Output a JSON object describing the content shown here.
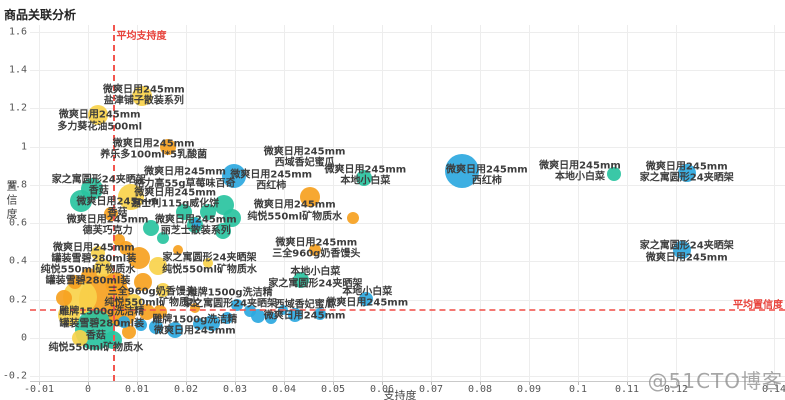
{
  "title": "商品关联分析",
  "watermark": "@51CTO博客",
  "chart_data": {
    "type": "scatter",
    "title": "商品关联分析",
    "xlabel": "支持度",
    "ylabel": "置信度",
    "xlim": [
      -0.011,
      0.142
    ],
    "ylim": [
      -0.225,
      1.63
    ],
    "grid": true,
    "x_ticks": [
      {
        "v": -0.01,
        "t": "-0.01"
      },
      {
        "v": 0,
        "t": "0"
      },
      {
        "v": 0.01,
        "t": "0.01"
      },
      {
        "v": 0.02,
        "t": "0.02"
      },
      {
        "v": 0.03,
        "t": "0.03"
      },
      {
        "v": 0.04,
        "t": "0.04"
      },
      {
        "v": 0.05,
        "t": "0.05"
      },
      {
        "v": 0.06,
        "t": "0.06"
      },
      {
        "v": 0.07,
        "t": "0.07"
      },
      {
        "v": 0.08,
        "t": "0.08"
      },
      {
        "v": 0.09,
        "t": "0.09"
      },
      {
        "v": 0.1,
        "t": "0.1"
      },
      {
        "v": 0.11,
        "t": "0.11"
      },
      {
        "v": 0.12,
        "t": "0.12"
      },
      {
        "v": 0.14,
        "t": "0.14"
      }
    ],
    "y_ticks": [
      {
        "v": 1.6,
        "t": "1.6"
      },
      {
        "v": 1.4,
        "t": "1.4"
      },
      {
        "v": 1.2,
        "t": "1.2"
      },
      {
        "v": 1.0,
        "t": "1"
      },
      {
        "v": 0.8,
        "t": "0.8"
      },
      {
        "v": 0.6,
        "t": "0.6"
      },
      {
        "v": 0.4,
        "t": "0.4"
      },
      {
        "v": 0.2,
        "t": "0.2"
      },
      {
        "v": 0,
        "t": "0"
      },
      {
        "v": -0.2,
        "t": "-0.2"
      }
    ],
    "avg_lines": {
      "support": {
        "value": 0.005,
        "label": "平均支持度"
      },
      "confidence": {
        "value": 0.15,
        "label": "平均置信度"
      }
    },
    "colors": {
      "o": "#f6a11f",
      "y": "#f8d24b",
      "t": "#29c3a0",
      "b": "#2ca8e0"
    },
    "bubbles": [
      [
        0.011,
        1.264,
        10,
        "y"
      ],
      [
        0.002,
        1.164,
        10,
        "y"
      ],
      [
        0.0088,
        0.736,
        13,
        "y"
      ],
      [
        0.0142,
        0.376,
        9,
        "y"
      ],
      [
        0.0154,
        0.251,
        7,
        "y"
      ],
      [
        -0.0016,
        0.214,
        17,
        "y"
      ],
      [
        -0.0038,
        0.12,
        11,
        "y"
      ],
      [
        0.0094,
        0.188,
        8,
        "y"
      ],
      [
        0.003,
        0.366,
        9,
        "y"
      ],
      [
        -0.0016,
        0.0,
        8,
        "y"
      ],
      [
        0.002,
        0.444,
        7,
        "y"
      ],
      [
        0.0244,
        0.392,
        5,
        "y"
      ],
      [
        0.0164,
        0.997,
        8,
        "o"
      ],
      [
        0.0046,
        0.648,
        7,
        "o"
      ],
      [
        0.0454,
        0.736,
        10,
        "o"
      ],
      [
        0.054,
        0.627,
        6,
        "o"
      ],
      [
        0.0464,
        0.46,
        6,
        "o"
      ],
      [
        0.0104,
        0.418,
        11,
        "o"
      ],
      [
        0.0112,
        0.292,
        9,
        "o"
      ],
      [
        0.0184,
        0.46,
        5,
        "o"
      ],
      [
        0.0034,
        0.198,
        26,
        "o"
      ],
      [
        0.007,
        0.131,
        14,
        "o"
      ],
      [
        0.0058,
        0.287,
        11,
        "o"
      ],
      [
        0.012,
        0.136,
        8,
        "o"
      ],
      [
        0.0002,
        0.324,
        8,
        "o"
      ],
      [
        -0.0026,
        0.292,
        7,
        "o"
      ],
      [
        -0.005,
        0.209,
        8,
        "o"
      ],
      [
        0.0084,
        0.031,
        7,
        "o"
      ],
      [
        0.0146,
        0.136,
        7,
        "o"
      ],
      [
        0.0218,
        0.157,
        5,
        "o"
      ],
      [
        0.0064,
        0.512,
        6,
        "o"
      ],
      [
        0.0078,
        0.47,
        7,
        "o"
      ],
      [
        0.0008,
        0.778,
        11,
        "t"
      ],
      [
        -0.0014,
        0.715,
        11,
        "t"
      ],
      [
        0.0128,
        0.574,
        8,
        "t"
      ],
      [
        0.0154,
        0.522,
        6,
        "t"
      ],
      [
        0.0278,
        0.694,
        10,
        "t"
      ],
      [
        0.0294,
        0.627,
        9,
        "t"
      ],
      [
        0.0276,
        0.559,
        8,
        "t"
      ],
      [
        0.0244,
        0.658,
        8,
        "t"
      ],
      [
        0.0196,
        0.658,
        8,
        "t"
      ],
      [
        0.0218,
        0.59,
        8,
        "t"
      ],
      [
        0.0564,
        0.835,
        8,
        "t"
      ],
      [
        0.1074,
        0.856,
        7,
        "t"
      ],
      [
        0.0434,
        0.303,
        8,
        "t"
      ],
      [
        0.0014,
        0.042,
        20,
        "t"
      ],
      [
        0.005,
        -0.01,
        9,
        "t"
      ],
      [
        0.0298,
        0.846,
        12,
        "b"
      ],
      [
        0.0764,
        0.872,
        17,
        "b"
      ],
      [
        0.1222,
        0.862,
        9,
        "b"
      ],
      [
        0.1212,
        0.46,
        9,
        "b"
      ],
      [
        0.0568,
        0.204,
        7,
        "b"
      ],
      [
        0.0346,
        0.115,
        7,
        "b"
      ],
      [
        0.0474,
        0.125,
        6,
        "b"
      ],
      [
        0.0422,
        0.12,
        7,
        "b"
      ],
      [
        0.033,
        0.141,
        6,
        "b"
      ],
      [
        0.0304,
        0.172,
        6,
        "b"
      ],
      [
        0.0254,
        0.078,
        8,
        "b"
      ],
      [
        0.0226,
        0.073,
        6,
        "b"
      ],
      [
        0.0178,
        0.042,
        8,
        "b"
      ],
      [
        0.0138,
        0.057,
        7,
        "b"
      ],
      [
        0.0108,
        0.068,
        6,
        "b"
      ],
      [
        0.0074,
        0.084,
        6,
        "b"
      ],
      [
        0.0284,
        0.104,
        6,
        "b"
      ],
      [
        0.0374,
        0.104,
        6,
        "b"
      ],
      [
        0.0398,
        0.146,
        5,
        "b"
      ],
      [
        0.022,
        0.6,
        5,
        "b"
      ]
    ],
    "labels": [
      {
        "x": 0.0114,
        "y": 1.264,
        "a": "微爽日用245mm",
        "b": "盐津铺子散装系列"
      },
      {
        "x": 0.0024,
        "y": 1.133,
        "a": "微爽日用245mm",
        "b": "多力葵花油500ml"
      },
      {
        "x": 0.0134,
        "y": 0.982,
        "a": "微爽日用245mm",
        "b": "养乐多100ml*5乳酸菌"
      },
      {
        "x": 0.0022,
        "y": 0.794,
        "a": "家之寓圆形24夹晒架",
        "b": "香菇"
      },
      {
        "x": 0.0198,
        "y": 0.835,
        "a": "微爽日用245mm",
        "b": "格力高55g草莓味百奇"
      },
      {
        "x": 0.006,
        "y": 0.679,
        "a": "微爽日用245mm",
        "b": "香菇"
      },
      {
        "x": 0.0178,
        "y": 0.726,
        "a": "微爽日用245mm",
        "b": "嘉士利115g威化饼"
      },
      {
        "x": 0.004,
        "y": 0.585,
        "a": "微爽日用245mm",
        "b": "德芙巧克力"
      },
      {
        "x": 0.022,
        "y": 0.585,
        "a": "微爽日用245mm",
        "b": "丽芝士散装系列"
      },
      {
        "x": 0.0012,
        "y": 0.439,
        "a": "微爽日用245mm",
        "b": "罐装雪碧280ml装"
      },
      {
        "x": 0.0,
        "y": 0.324,
        "a": "纯悦550ml矿物质水",
        "b": "罐装雪碧280ml装"
      },
      {
        "x": 0.0248,
        "y": 0.385,
        "a": "家之寓圆形24夹晒架",
        "b": "纯悦550ml矿物质水"
      },
      {
        "x": 0.013,
        "y": 0.209,
        "a": "三全960g奶香馒头",
        "b": "纯悦550ml矿物质水"
      },
      {
        "x": 0.029,
        "y": 0.204,
        "a": "雕牌1500g洗洁精",
        "b": "家之寓圆形24夹晒架"
      },
      {
        "x": 0.0028,
        "y": 0.104,
        "a": "雕牌1500g洗洁精",
        "b": "罐装雪碧280ml装"
      },
      {
        "x": 0.0016,
        "y": -0.021,
        "a": "香菇",
        "b": "纯悦550ml矿物质水"
      },
      {
        "x": 0.0218,
        "y": 0.063,
        "a": "雕牌1500g洗洁精",
        "b": "微爽日用245mm"
      },
      {
        "x": 0.0442,
        "y": 0.141,
        "a": "西域香妃蜜瓜",
        "b": "微爽日用245mm"
      },
      {
        "x": 0.0422,
        "y": 0.663,
        "a": "微爽日用245mm",
        "b": "纯悦550ml矿物质水"
      },
      {
        "x": 0.0466,
        "y": 0.465,
        "a": "微爽日用245mm",
        "b": "三全960g奶香馒头"
      },
      {
        "x": 0.0464,
        "y": 0.313,
        "a": "本地小白菜",
        "b": "家之寓圆形24夹晒架"
      },
      {
        "x": 0.057,
        "y": 0.209,
        "a": "本地小白菜",
        "b": "微爽日用245mm"
      },
      {
        "x": 0.0442,
        "y": 0.94,
        "a": "微爽日用245mm",
        "b": "西域香妃蜜瓜"
      },
      {
        "x": 0.0566,
        "y": 0.846,
        "a": "微爽日用245mm",
        "b": "本地小白菜"
      },
      {
        "x": 0.0374,
        "y": 0.82,
        "a": "微爽日用245mm",
        "b": "西红柿"
      },
      {
        "x": 0.0814,
        "y": 0.846,
        "a": "微爽日用245mm",
        "b": "西红柿"
      },
      {
        "x": 0.1004,
        "y": 0.867,
        "a": "微爽日用245mm",
        "b": "本地小白菜"
      },
      {
        "x": 0.1222,
        "y": 0.862,
        "a": "微爽日用245mm",
        "b": "家之寓圆形24夹晒架"
      },
      {
        "x": 0.1222,
        "y": 0.449,
        "a": "家之寓圆形24夹晒架",
        "b": "微爽日用245mm"
      }
    ]
  }
}
